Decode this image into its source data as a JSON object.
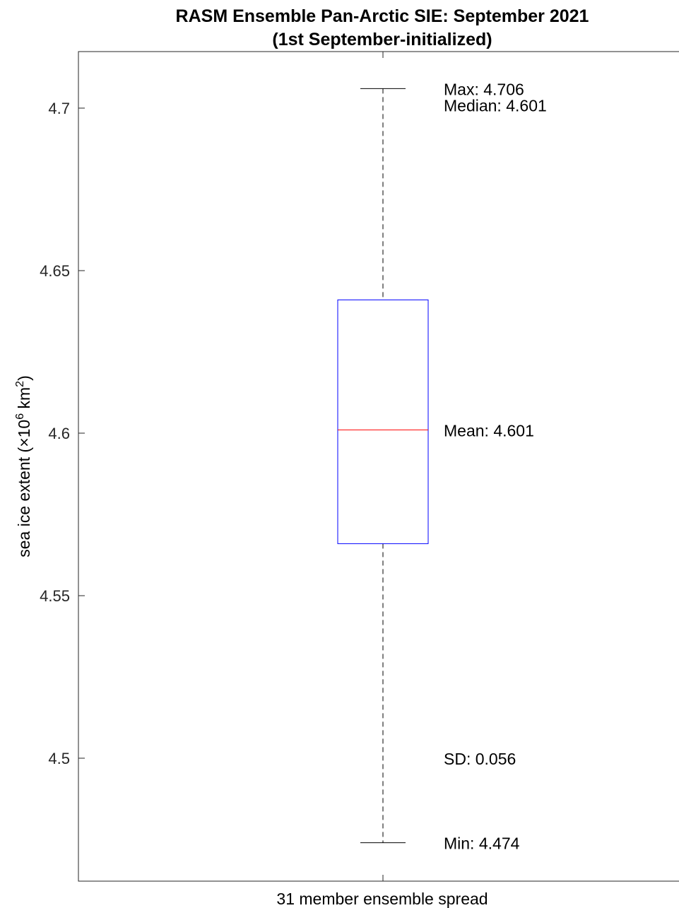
{
  "chart_data": {
    "type": "box",
    "title": "RASM Ensemble Pan-Arctic SIE: September 2021",
    "subtitle": "(1st September-initialized)",
    "ylabel": {
      "text_before": "sea ice extent (",
      "times": "×10",
      "exp": "6",
      "unit": " km",
      "unit_exp": "2",
      "text_after": ")"
    },
    "xlabel": "31 member ensemble spread",
    "ylim": [
      4.4625,
      4.7175
    ],
    "yticks": [
      4.5,
      4.55,
      4.6,
      4.65,
      4.7
    ],
    "ytick_labels": [
      "4.5",
      "4.55",
      "4.6",
      "4.65",
      "4.7"
    ],
    "grid": false,
    "box": {
      "min": 4.474,
      "q1": 4.566,
      "median": 4.601,
      "q3": 4.641,
      "max": 4.706,
      "box_color": "#0000ff",
      "median_color": "#ff0000",
      "whisker_color": "#000000"
    },
    "annotations": {
      "max": "Max: 4.706",
      "median": "Median: 4.601",
      "mean": "Mean: 4.601",
      "sd": "SD: 0.056",
      "min": "Min: 4.474"
    },
    "annotation_values": {
      "max": 4.706,
      "median": 4.701,
      "mean": 4.601,
      "sd": 4.5,
      "min": 4.474
    }
  }
}
